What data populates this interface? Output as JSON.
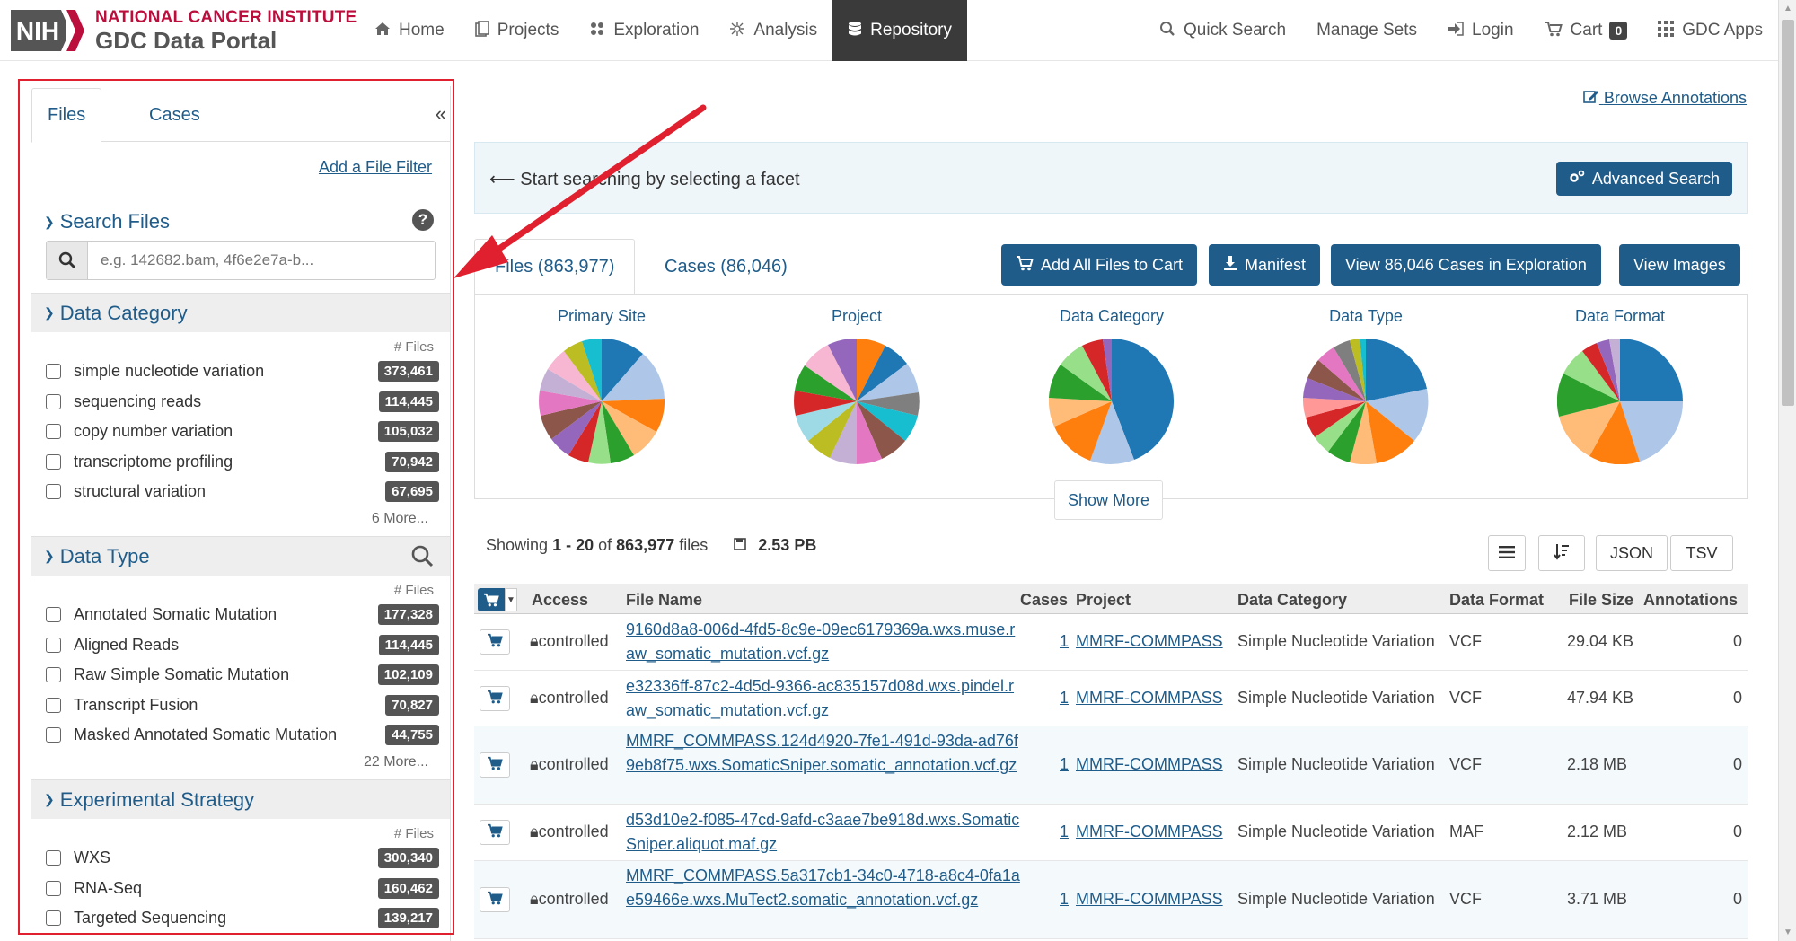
{
  "header": {
    "nci": "NATIONAL CANCER INSTITUTE",
    "portal": "GDC Data Portal",
    "nih": "NIH",
    "nav": [
      {
        "label": "Home",
        "icon": "home-icon"
      },
      {
        "label": "Projects",
        "icon": "projects-icon"
      },
      {
        "label": "Exploration",
        "icon": "exploration-icon"
      },
      {
        "label": "Analysis",
        "icon": "analysis-icon"
      },
      {
        "label": "Repository",
        "icon": "database-icon"
      }
    ],
    "right": {
      "quick_search": "Quick Search",
      "manage_sets": "Manage Sets",
      "login": "Login",
      "cart": "Cart",
      "cart_count": "0",
      "gdc_apps": "GDC Apps"
    },
    "active_color": "#3a3a3a"
  },
  "sidebar": {
    "tabs": [
      "Files",
      "Cases"
    ],
    "collapse": "«",
    "add_filter": "Add a File Filter",
    "search": {
      "title": "Search Files",
      "placeholder": "e.g. 142682.bam, 4f6e2e7a-b..."
    },
    "facets": [
      {
        "title": "Data Category",
        "count_header": "# Files",
        "items": [
          {
            "label": "simple nucleotide variation",
            "count": "373,461"
          },
          {
            "label": "sequencing reads",
            "count": "114,445"
          },
          {
            "label": "copy number variation",
            "count": "105,032"
          },
          {
            "label": "transcriptome profiling",
            "count": "70,942"
          },
          {
            "label": "structural variation",
            "count": "67,695"
          }
        ],
        "more": "6 More..."
      },
      {
        "title": "Data Type",
        "count_header": "# Files",
        "items": [
          {
            "label": "Annotated Somatic Mutation",
            "count": "177,328"
          },
          {
            "label": "Aligned Reads",
            "count": "114,445"
          },
          {
            "label": "Raw Simple Somatic Mutation",
            "count": "102,109"
          },
          {
            "label": "Transcript Fusion",
            "count": "70,827"
          },
          {
            "label": "Masked Annotated Somatic Mutation",
            "count": "44,755"
          }
        ],
        "more": "22 More..."
      },
      {
        "title": "Experimental Strategy",
        "count_header": "# Files",
        "items": [
          {
            "label": "WXS",
            "count": "300,340"
          },
          {
            "label": "RNA-Seq",
            "count": "160,462"
          },
          {
            "label": "Targeted Sequencing",
            "count": "139,217"
          }
        ]
      }
    ]
  },
  "main": {
    "browse_annotations": "Browse Annotations",
    "hint": "Start searching by selecting a facet",
    "advanced_search": "Advanced Search",
    "tabs": [
      "Files (863,977)",
      "Cases (86,046)"
    ],
    "buttons": {
      "add_all": "Add All Files to Cart",
      "manifest": "Manifest",
      "view_cases": "View 86,046 Cases in Exploration",
      "view_images": "View Images"
    },
    "charts": [
      "Primary Site",
      "Project",
      "Data Category",
      "Data Type",
      "Data Format"
    ],
    "show_more": "Show More",
    "showing": {
      "prefix": "Showing",
      "range": "1 - 20",
      "of": "of",
      "total": "863,977",
      "suffix": "files",
      "size": "2.53 PB"
    },
    "tools": {
      "json": "JSON",
      "tsv": "TSV"
    },
    "table": {
      "headers": [
        "Access",
        "File Name",
        "Cases",
        "Project",
        "Data Category",
        "Data Format",
        "File Size",
        "Annotations"
      ],
      "rows": [
        {
          "access": "controlled",
          "file_name": "9160d8a8-006d-4fd5-8c9e-09ec6179369a.wxs.muse.raw_somatic_mutation.vcf.gz",
          "cases": "1",
          "project": "MMRF-COMMPASS",
          "category": "Simple Nucleotide Variation",
          "format": "VCF",
          "size": "29.04 KB",
          "annotations": "0"
        },
        {
          "access": "controlled",
          "file_name": "e32336ff-87c2-4d5d-9366-ac835157d08d.wxs.pindel.raw_somatic_mutation.vcf.gz",
          "cases": "1",
          "project": "MMRF-COMMPASS",
          "category": "Simple Nucleotide Variation",
          "format": "VCF",
          "size": "47.94 KB",
          "annotations": "0"
        },
        {
          "access": "controlled",
          "file_name": "MMRF_COMMPASS.124d4920-7fe1-491d-93da-ad76f9eb8f75.wxs.SomaticSniper.somatic_annotation.vcf.gz",
          "cases": "1",
          "project": "MMRF-COMMPASS",
          "category": "Simple Nucleotide Variation",
          "format": "VCF",
          "size": "2.18 MB",
          "annotations": "0"
        },
        {
          "access": "controlled",
          "file_name": "d53d10e2-f085-47cd-9afd-c3aae7be918d.wxs.SomaticSniper.aliquot.maf.gz",
          "cases": "1",
          "project": "MMRF-COMMPASS",
          "category": "Simple Nucleotide Variation",
          "format": "MAF",
          "size": "2.12 MB",
          "annotations": "0"
        },
        {
          "access": "controlled",
          "file_name": "MMRF_COMMPASS.5a317cb1-34c0-4718-a8c4-0fa1ae59466e.wxs.MuTect2.somatic_annotation.vcf.gz",
          "cases": "1",
          "project": "MMRF-COMMPASS",
          "category": "Simple Nucleotide Variation",
          "format": "VCF",
          "size": "3.71 MB",
          "annotations": "0"
        }
      ]
    }
  },
  "colors": {
    "brand_red": "#bb0e3d",
    "link_blue": "#1f5c8a",
    "highlight_red": "#e0202e"
  }
}
